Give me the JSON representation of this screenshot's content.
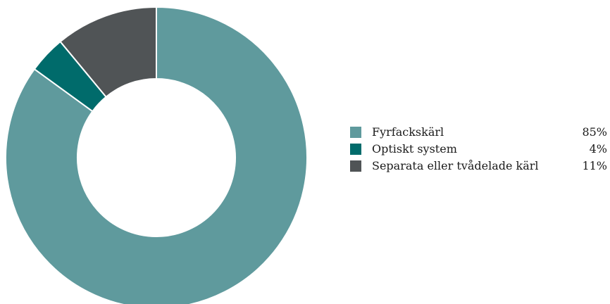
{
  "chart_data": {
    "type": "pie",
    "donut": true,
    "categories": [
      "Fyrfackskärl",
      "Optiskt system",
      "Separata eller tvådelade kärl"
    ],
    "values": [
      85,
      4,
      11
    ],
    "value_labels": [
      "85%",
      "4%",
      "11%"
    ],
    "colors": [
      "#5f9a9d",
      "#006b6b",
      "#505456"
    ],
    "legend_position": "right"
  }
}
